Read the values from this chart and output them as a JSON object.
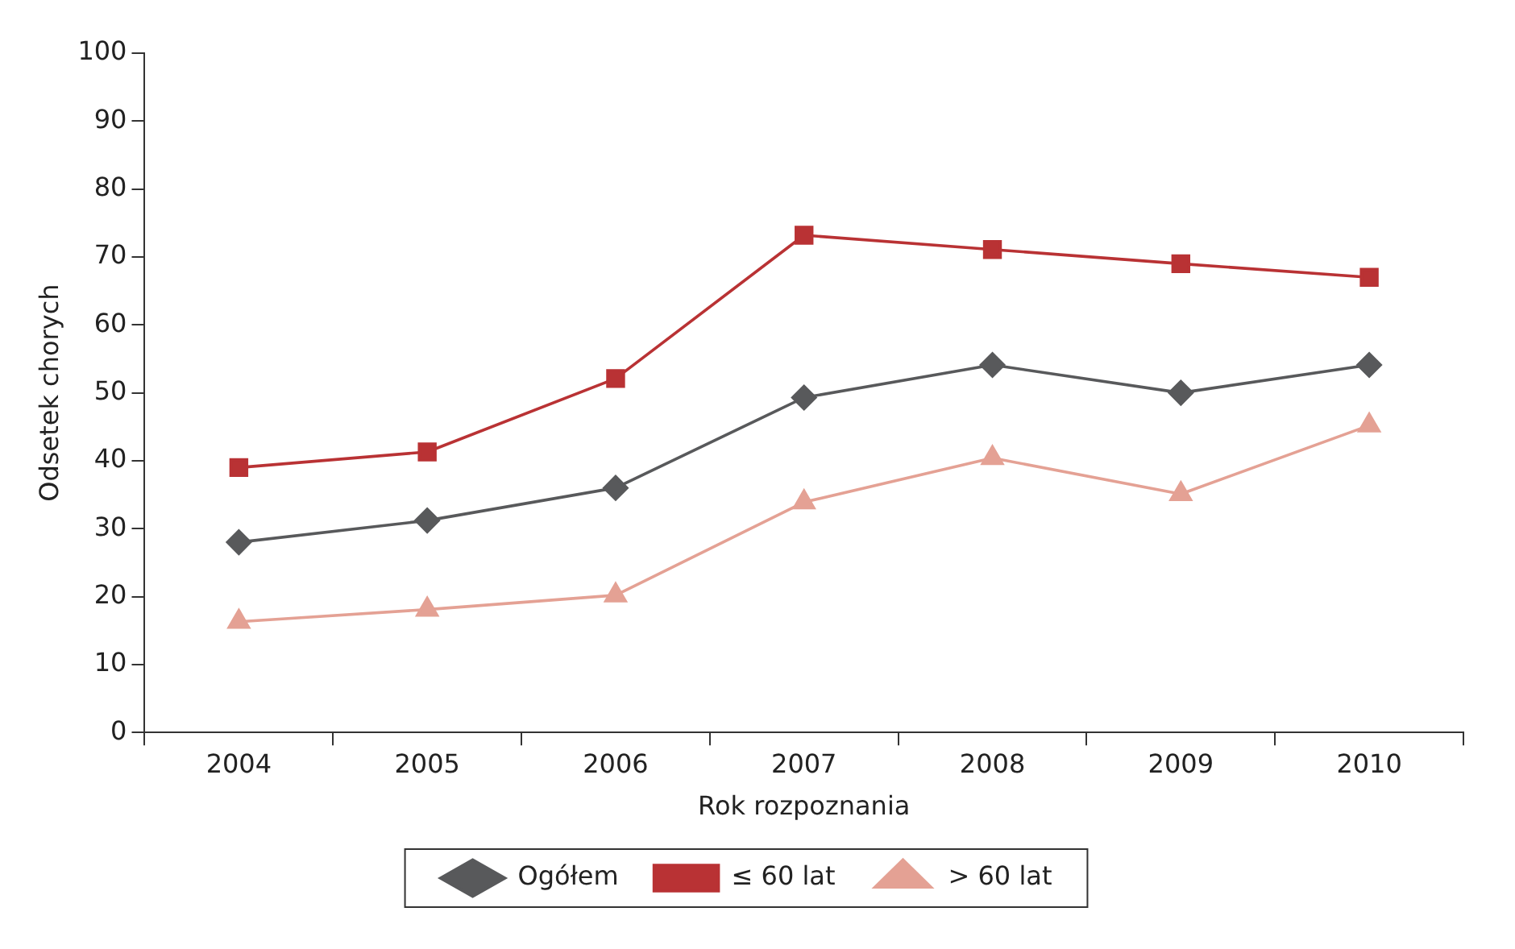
{
  "chart_data": {
    "type": "line",
    "xlabel": "Rok rozpoznania",
    "ylabel": "Odsetek chorych",
    "categories": [
      "2004",
      "2005",
      "2006",
      "2007",
      "2008",
      "2009",
      "2010"
    ],
    "series": [
      {
        "name": "Ogółem",
        "color": "#58595b",
        "marker": "diamond",
        "values": [
          28.0,
          31.2,
          36.0,
          49.3,
          54.1,
          50.0,
          54.1
        ]
      },
      {
        "name": "≤ 60 lat",
        "color": "#b93234",
        "marker": "square",
        "values": [
          39.0,
          41.3,
          52.1,
          73.2,
          71.1,
          69.0,
          67.0
        ]
      },
      {
        "name": "> 60 lat",
        "color": "#e4a194",
        "marker": "triangle",
        "values": [
          16.3,
          18.1,
          20.2,
          33.9,
          40.4,
          35.1,
          45.2
        ]
      }
    ],
    "ylim": [
      0,
      100
    ],
    "yticks": [
      0,
      10,
      20,
      30,
      40,
      50,
      60,
      70,
      80,
      90,
      100
    ],
    "grid": false,
    "legend": "bottom"
  }
}
